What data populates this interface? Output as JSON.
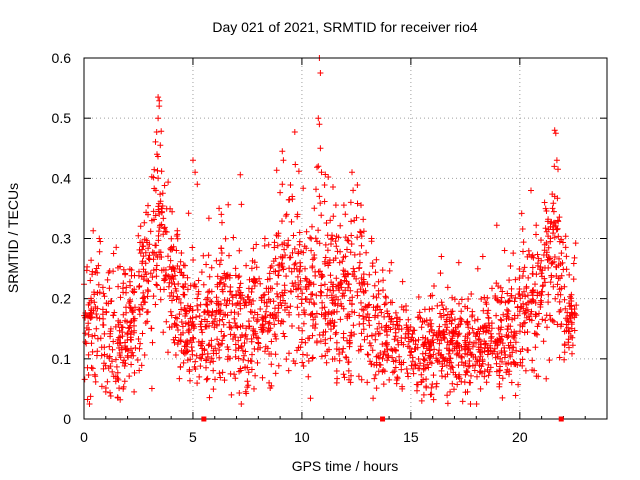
{
  "chart_data": {
    "type": "scatter",
    "title": "Day 021 of 2021, SRMTID for receiver rio4",
    "xlabel": "GPS time / hours",
    "ylabel": "SRMTID / TECUs",
    "xlim": [
      0,
      24
    ],
    "ylim": [
      0,
      0.6
    ],
    "x_ticks": [
      "0",
      "5",
      "10",
      "15",
      "20"
    ],
    "y_ticks": [
      "0",
      "0.1",
      "0.2",
      "0.3",
      "0.4",
      "0.5",
      "0.6"
    ],
    "grid": true,
    "marker": "plus",
    "color": "#ff0000",
    "envelope": [
      [
        0.0,
        0.15,
        0.06
      ],
      [
        0.5,
        0.19,
        0.07
      ],
      [
        1.0,
        0.13,
        0.06
      ],
      [
        1.5,
        0.12,
        0.06
      ],
      [
        2.0,
        0.15,
        0.06
      ],
      [
        2.5,
        0.17,
        0.06
      ],
      [
        3.0,
        0.25,
        0.08
      ],
      [
        3.4,
        0.32,
        0.1
      ],
      [
        3.8,
        0.24,
        0.07
      ],
      [
        4.3,
        0.2,
        0.06
      ],
      [
        4.8,
        0.15,
        0.06
      ],
      [
        5.3,
        0.15,
        0.06
      ],
      [
        6.0,
        0.17,
        0.06
      ],
      [
        6.5,
        0.18,
        0.06
      ],
      [
        7.0,
        0.16,
        0.06
      ],
      [
        7.5,
        0.15,
        0.06
      ],
      [
        8.0,
        0.17,
        0.06
      ],
      [
        8.5,
        0.17,
        0.06
      ],
      [
        9.0,
        0.22,
        0.08
      ],
      [
        9.5,
        0.23,
        0.08
      ],
      [
        10.0,
        0.21,
        0.08
      ],
      [
        10.5,
        0.2,
        0.08
      ],
      [
        10.9,
        0.25,
        0.1
      ],
      [
        11.5,
        0.2,
        0.07
      ],
      [
        12.0,
        0.19,
        0.07
      ],
      [
        12.5,
        0.21,
        0.08
      ],
      [
        13.0,
        0.19,
        0.07
      ],
      [
        13.5,
        0.15,
        0.05
      ],
      [
        14.0,
        0.13,
        0.04
      ],
      [
        14.5,
        0.13,
        0.04
      ],
      [
        15.0,
        0.12,
        0.04
      ],
      [
        15.5,
        0.11,
        0.04
      ],
      [
        16.0,
        0.12,
        0.04
      ],
      [
        16.5,
        0.12,
        0.04
      ],
      [
        17.0,
        0.12,
        0.04
      ],
      [
        17.5,
        0.11,
        0.04
      ],
      [
        18.0,
        0.12,
        0.04
      ],
      [
        18.5,
        0.14,
        0.05
      ],
      [
        19.0,
        0.14,
        0.05
      ],
      [
        19.5,
        0.14,
        0.05
      ],
      [
        20.0,
        0.16,
        0.06
      ],
      [
        20.5,
        0.2,
        0.06
      ],
      [
        21.0,
        0.22,
        0.07
      ],
      [
        21.5,
        0.27,
        0.08
      ],
      [
        21.9,
        0.22,
        0.08
      ],
      [
        22.2,
        0.16,
        0.05
      ],
      [
        22.6,
        0.19,
        0.06
      ]
    ],
    "peaks": [
      [
        3.4,
        0.535
      ],
      [
        3.45,
        0.52
      ],
      [
        3.4,
        0.5
      ],
      [
        3.5,
        0.455
      ],
      [
        3.35,
        0.44
      ],
      [
        3.4,
        0.4
      ],
      [
        3.3,
        0.38
      ],
      [
        5.0,
        0.43
      ],
      [
        5.1,
        0.41
      ],
      [
        5.2,
        0.39
      ],
      [
        9.1,
        0.445
      ],
      [
        9.15,
        0.43
      ],
      [
        9.1,
        0.39
      ],
      [
        9.3,
        0.34
      ],
      [
        10.8,
        0.6
      ],
      [
        10.85,
        0.575
      ],
      [
        10.75,
        0.5
      ],
      [
        10.8,
        0.49
      ],
      [
        10.85,
        0.45
      ],
      [
        10.75,
        0.42
      ],
      [
        10.9,
        0.41
      ],
      [
        10.8,
        0.37
      ],
      [
        12.3,
        0.41
      ],
      [
        12.35,
        0.38
      ],
      [
        12.25,
        0.36
      ],
      [
        12.4,
        0.33
      ],
      [
        21.6,
        0.48
      ],
      [
        21.65,
        0.475
      ],
      [
        21.7,
        0.43
      ],
      [
        21.75,
        0.415
      ],
      [
        21.6,
        0.37
      ],
      [
        21.5,
        0.35
      ],
      [
        0.7,
        0.3
      ],
      [
        0.75,
        0.295
      ],
      [
        7.9,
        0.29
      ],
      [
        8.3,
        0.3
      ],
      [
        12.7,
        0.31
      ],
      [
        13.2,
        0.3
      ],
      [
        6.2,
        0.35
      ],
      [
        6.3,
        0.34
      ],
      [
        9.8,
        0.34
      ],
      [
        9.9,
        0.31
      ],
      [
        11.3,
        0.33
      ],
      [
        11.4,
        0.3
      ],
      [
        19.3,
        0.28
      ],
      [
        16.4,
        0.27
      ],
      [
        14.1,
        0.26
      ],
      [
        17.2,
        0.26
      ],
      [
        18.3,
        0.27
      ]
    ],
    "lows": [
      [
        15.5,
        0.03
      ],
      [
        15.6,
        0.04
      ],
      [
        16.8,
        0.045
      ],
      [
        17.6,
        0.045
      ],
      [
        18.2,
        0.05
      ],
      [
        14.6,
        0.05
      ],
      [
        1.0,
        0.045
      ],
      [
        1.8,
        0.05
      ],
      [
        2.3,
        0.045
      ],
      [
        7.8,
        0.05
      ],
      [
        8.6,
        0.055
      ],
      [
        11.6,
        0.06
      ],
      [
        19.2,
        0.035
      ]
    ],
    "axis_markers_x": [
      5.5,
      13.7,
      21.9
    ]
  }
}
